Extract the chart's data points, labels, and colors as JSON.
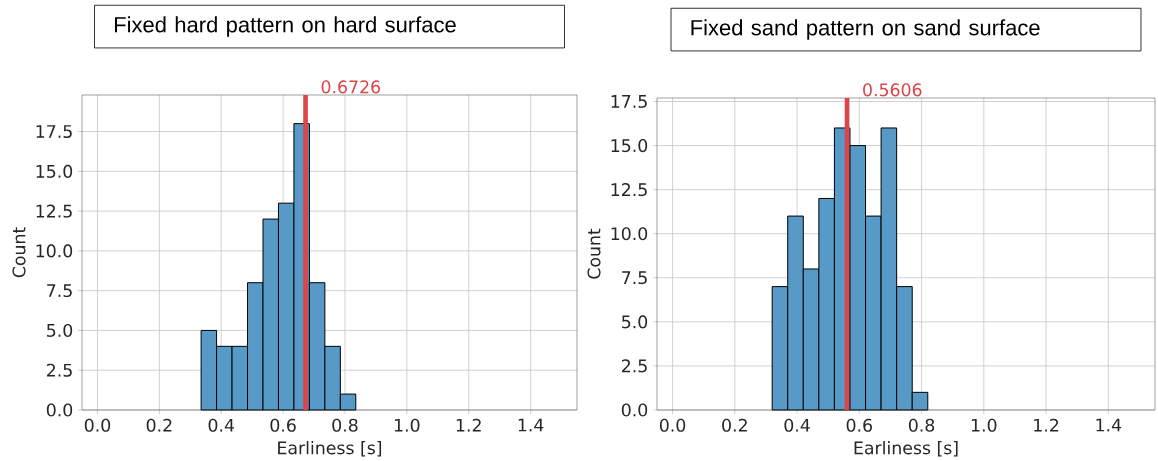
{
  "chart_data": [
    {
      "type": "histogram",
      "title": "Fixed hard pattern on hard surface",
      "xlabel": "Earliness [s]",
      "ylabel": "Count",
      "bins": [
        0.335,
        0.385,
        0.435,
        0.485,
        0.535,
        0.585,
        0.635,
        0.685,
        0.735,
        0.785,
        0.835
      ],
      "values": [
        5,
        4,
        4,
        8,
        12,
        13,
        18,
        8,
        4,
        1
      ],
      "color": "#5799c7",
      "xlim": [
        -0.05,
        1.55
      ],
      "ylim": [
        0,
        19.8
      ],
      "xticks": [
        {
          "value": 0,
          "label": "0.0"
        },
        {
          "value": 0.2,
          "label": "0.2"
        },
        {
          "value": 0.4,
          "label": "0.4"
        },
        {
          "value": 0.6,
          "label": "0.6"
        },
        {
          "value": 0.8,
          "label": "0.8"
        },
        {
          "value": 1.0,
          "label": "1.0"
        },
        {
          "value": 1.2,
          "label": "1.2"
        },
        {
          "value": 1.4,
          "label": "1.4"
        }
      ],
      "yticks": [
        {
          "value": 0,
          "label": "0.0"
        },
        {
          "value": 2.5,
          "label": "2.5"
        },
        {
          "value": 5,
          "label": "5.0"
        },
        {
          "value": 7.5,
          "label": "7.5"
        },
        {
          "value": 10,
          "label": "10.0"
        },
        {
          "value": 12.5,
          "label": "12.5"
        },
        {
          "value": 15,
          "label": "15.0"
        },
        {
          "value": 17.5,
          "label": "17.5"
        }
      ],
      "grid": true,
      "ref_lines": [
        {
          "axis": "x",
          "value": 0.6726,
          "label": "0.6726",
          "color": "#d9464b"
        }
      ]
    },
    {
      "type": "histogram",
      "title": "Fixed sand pattern on sand surface",
      "xlabel": "Earliness [s]",
      "ylabel": "Count",
      "bins": [
        0.32,
        0.37,
        0.42,
        0.47,
        0.52,
        0.57,
        0.62,
        0.67,
        0.72,
        0.77,
        0.82
      ],
      "values": [
        7,
        11,
        8,
        12,
        16,
        15,
        11,
        16,
        7,
        1
      ],
      "color": "#5799c7",
      "xlim": [
        -0.05,
        1.55
      ],
      "ylim": [
        0,
        17.7
      ],
      "xticks": [
        {
          "value": 0,
          "label": "0.0"
        },
        {
          "value": 0.2,
          "label": "0.2"
        },
        {
          "value": 0.4,
          "label": "0.4"
        },
        {
          "value": 0.6,
          "label": "0.6"
        },
        {
          "value": 0.8,
          "label": "0.8"
        },
        {
          "value": 1.0,
          "label": "1.0"
        },
        {
          "value": 1.2,
          "label": "1.2"
        },
        {
          "value": 1.4,
          "label": "1.4"
        }
      ],
      "yticks": [
        {
          "value": 0,
          "label": "0.0"
        },
        {
          "value": 2.5,
          "label": "2.5"
        },
        {
          "value": 5,
          "label": "5.0"
        },
        {
          "value": 7.5,
          "label": "7.5"
        },
        {
          "value": 10,
          "label": "10.0"
        },
        {
          "value": 12.5,
          "label": "12.5"
        },
        {
          "value": 15,
          "label": "15.0"
        },
        {
          "value": 17.5,
          "label": "17.5"
        }
      ],
      "grid": true,
      "ref_lines": [
        {
          "axis": "x",
          "value": 0.5606,
          "label": "0.5606",
          "color": "#d9464b"
        }
      ]
    }
  ]
}
